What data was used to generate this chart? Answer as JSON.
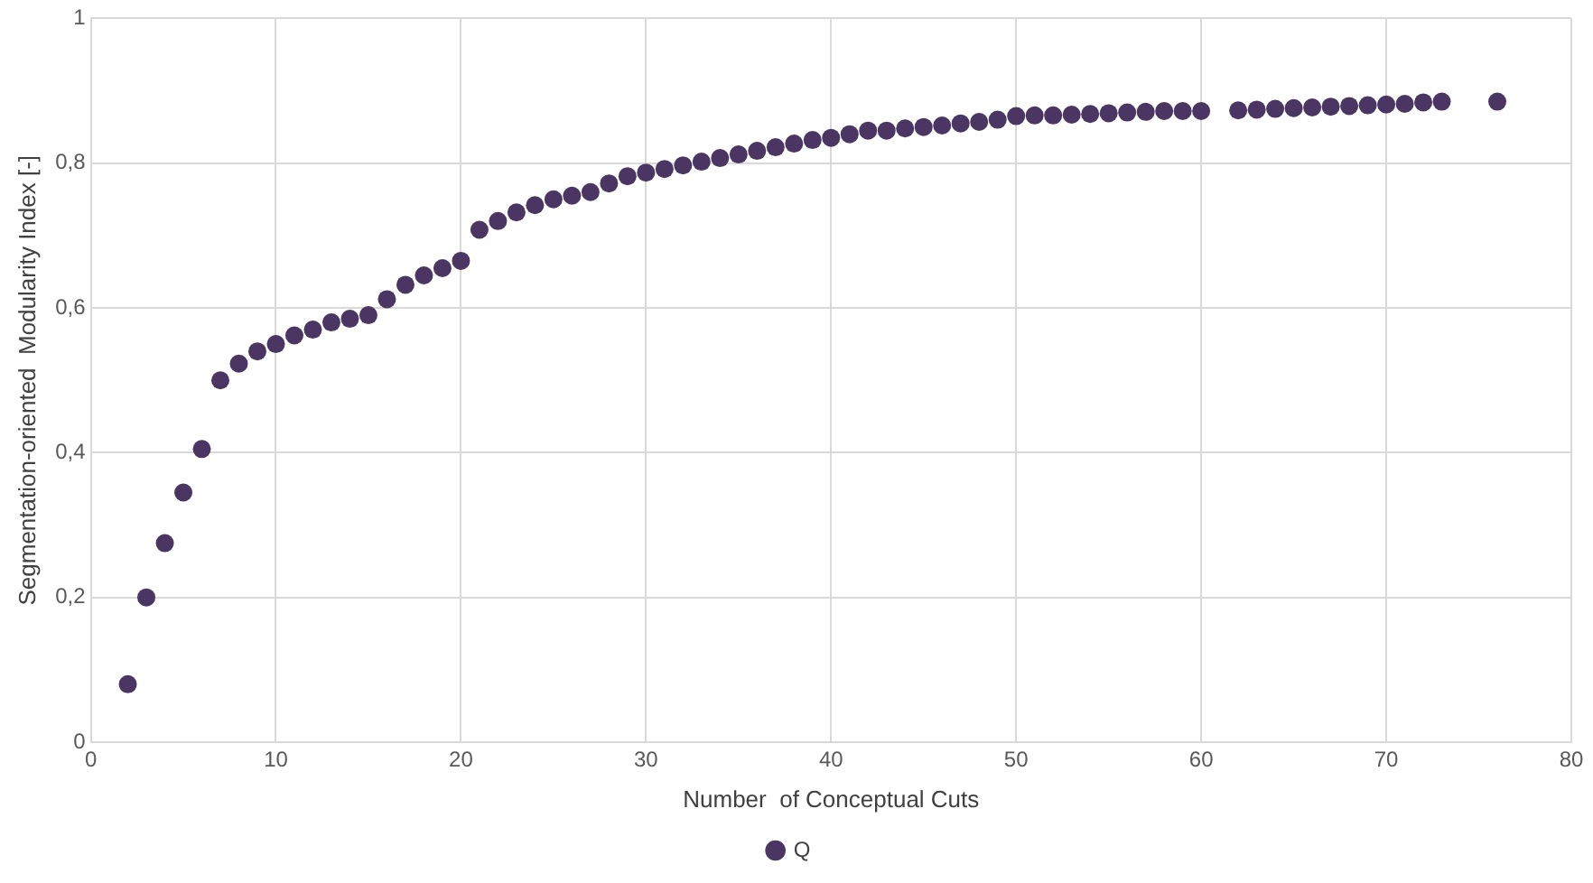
{
  "chart_data": {
    "type": "scatter",
    "xlabel": "Number  of Conceptual Cuts",
    "ylabel": "Segmentation-oriented  Modularity Index [-]",
    "x": [
      2,
      3,
      4,
      5,
      6,
      7,
      8,
      9,
      10,
      11,
      12,
      13,
      14,
      15,
      16,
      17,
      18,
      19,
      20,
      21,
      22,
      23,
      24,
      25,
      26,
      27,
      28,
      29,
      30,
      31,
      32,
      33,
      34,
      35,
      36,
      37,
      38,
      39,
      40,
      41,
      42,
      43,
      44,
      45,
      46,
      47,
      48,
      49,
      50,
      51,
      52,
      53,
      54,
      55,
      56,
      57,
      58,
      59,
      60,
      62,
      63,
      64,
      65,
      66,
      67,
      68,
      69,
      70,
      71,
      72,
      73,
      76
    ],
    "series": [
      {
        "name": "Q",
        "color": "#4b3563",
        "values": [
          0.08,
          0.2,
          0.275,
          0.345,
          0.405,
          0.5,
          0.523,
          0.54,
          0.55,
          0.562,
          0.57,
          0.58,
          0.585,
          0.59,
          0.612,
          0.632,
          0.645,
          0.655,
          0.665,
          0.708,
          0.72,
          0.732,
          0.742,
          0.75,
          0.755,
          0.76,
          0.772,
          0.782,
          0.787,
          0.792,
          0.797,
          0.802,
          0.807,
          0.812,
          0.817,
          0.822,
          0.827,
          0.832,
          0.835,
          0.84,
          0.845,
          0.845,
          0.848,
          0.85,
          0.852,
          0.855,
          0.857,
          0.86,
          0.865,
          0.866,
          0.866,
          0.867,
          0.868,
          0.869,
          0.87,
          0.871,
          0.872,
          0.872,
          0.872,
          0.873,
          0.874,
          0.875,
          0.876,
          0.877,
          0.878,
          0.879,
          0.88,
          0.881,
          0.882,
          0.884,
          0.885,
          0.885
        ]
      }
    ],
    "xlim": [
      0,
      80
    ],
    "xticks": [
      0,
      10,
      20,
      30,
      40,
      50,
      60,
      70,
      80
    ],
    "ylim": [
      0,
      1
    ],
    "yticks": [
      0,
      {
        "value": 0.2,
        "label": "0,2"
      },
      {
        "value": 0.4,
        "label": "0,4"
      },
      {
        "value": 0.6,
        "label": "0,6"
      },
      {
        "value": 0.8,
        "label": "0,8"
      },
      1
    ],
    "grid": true,
    "legend": "bottom",
    "marker": "circle"
  }
}
